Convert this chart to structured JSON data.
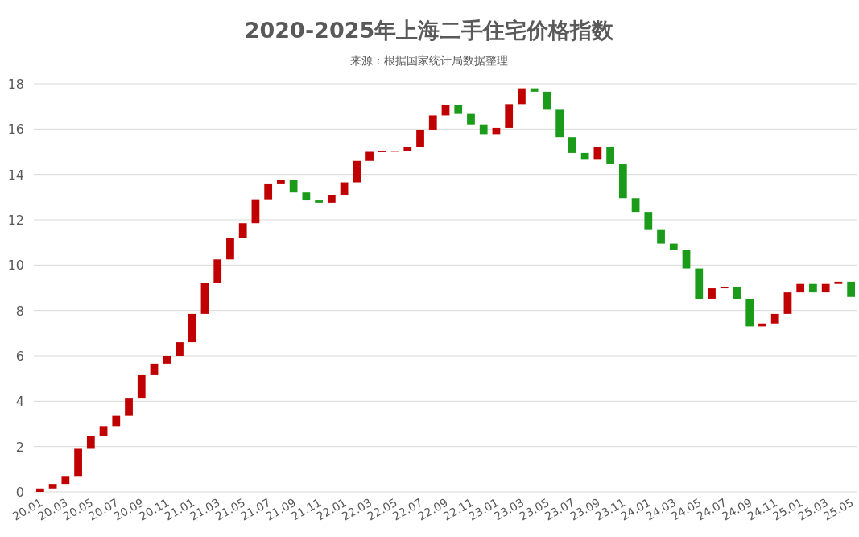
{
  "chart_data": {
    "type": "bar",
    "title": "2020-2025年上海二手住宅价格指数",
    "annotations": [
      "来源：根据国家统计局数据整理"
    ],
    "categories": [
      "20.01",
      null,
      "20.03",
      null,
      "20.05",
      null,
      "20.07",
      null,
      "20.09",
      null,
      "20.11",
      null,
      "21.01",
      null,
      "21.03",
      null,
      "21.05",
      null,
      "21.07",
      null,
      "21.09",
      null,
      "21.11",
      null,
      "22.01",
      null,
      "22.03",
      null,
      "22.05",
      null,
      "22.07",
      null,
      "22.09",
      null,
      "22.11",
      null,
      "23.01",
      null,
      "23.03",
      null,
      "23.05",
      null,
      "23.07",
      null,
      "23.09",
      null,
      "23.11",
      null,
      "24.01",
      null,
      "24.03",
      null,
      "24.05",
      null,
      "24.07",
      null,
      "24.09",
      null,
      "24.11",
      null,
      "25.01",
      null,
      "25.03",
      null,
      "25.05"
    ],
    "base": [
      0,
      0.15,
      0.35,
      0.7,
      1.9,
      2.45,
      2.9,
      3.35,
      4.15,
      5.15,
      5.65,
      6.0,
      6.6,
      7.85,
      9.2,
      10.25,
      11.2,
      11.85,
      12.9,
      13.6,
      13.75,
      13.2,
      12.85,
      12.75,
      13.1,
      13.65,
      14.6,
      15.0,
      15.02,
      15.04,
      15.2,
      15.95,
      16.6,
      17.05,
      16.7,
      16.2,
      15.75,
      16.05,
      17.1,
      17.8,
      17.65,
      16.85,
      15.65,
      14.95,
      14.65,
      15.2,
      14.45,
      12.95,
      12.35,
      11.55,
      10.95,
      10.65,
      9.85,
      8.5,
      8.98,
      9.05,
      8.5,
      7.3,
      7.43,
      7.85,
      8.8,
      9.17,
      8.8,
      9.17,
      9.27
    ],
    "values": [
      0.15,
      0.2,
      0.35,
      1.2,
      0.55,
      0.45,
      0.45,
      0.8,
      1.0,
      0.5,
      0.35,
      0.6,
      1.25,
      1.35,
      1.05,
      0.95,
      0.65,
      1.05,
      0.7,
      0.15,
      -0.55,
      -0.35,
      -0.1,
      0.35,
      0.55,
      0.95,
      0.4,
      0.02,
      0.02,
      0.16,
      0.75,
      0.65,
      0.45,
      -0.35,
      -0.5,
      -0.45,
      0.3,
      1.05,
      0.7,
      -0.15,
      -0.8,
      -1.2,
      -0.7,
      -0.3,
      0.55,
      -0.75,
      -1.5,
      -0.6,
      -0.8,
      -0.6,
      -0.3,
      -0.8,
      -1.35,
      0.48,
      0.07,
      -0.55,
      -1.2,
      0.13,
      0.42,
      0.95,
      0.37,
      -0.37,
      0.37,
      0.1,
      -0.67
    ],
    "colors": [
      "#c00000",
      "#c00000",
      "#c00000",
      "#c00000",
      "#c00000",
      "#c00000",
      "#c00000",
      "#c00000",
      "#c00000",
      "#c00000",
      "#c00000",
      "#c00000",
      "#c00000",
      "#c00000",
      "#c00000",
      "#c00000",
      "#c00000",
      "#c00000",
      "#c00000",
      "#c00000",
      "#1a9c1a",
      "#1a9c1a",
      "#1a9c1a",
      "#c00000",
      "#c00000",
      "#c00000",
      "#c00000",
      "#c00000",
      "#c00000",
      "#c00000",
      "#c00000",
      "#c00000",
      "#c00000",
      "#1a9c1a",
      "#1a9c1a",
      "#1a9c1a",
      "#c00000",
      "#c00000",
      "#c00000",
      "#1a9c1a",
      "#1a9c1a",
      "#1a9c1a",
      "#1a9c1a",
      "#1a9c1a",
      "#c00000",
      "#1a9c1a",
      "#1a9c1a",
      "#1a9c1a",
      "#1a9c1a",
      "#1a9c1a",
      "#1a9c1a",
      "#1a9c1a",
      "#1a9c1a",
      "#c00000",
      "#c00000",
      "#1a9c1a",
      "#1a9c1a",
      "#c00000",
      "#c00000",
      "#c00000",
      "#c00000",
      "#1a9c1a",
      "#c00000",
      "#c00000",
      "#1a9c1a"
    ],
    "ylim": [
      0,
      18
    ],
    "yticks": [
      0,
      2,
      4,
      6,
      8,
      10,
      12,
      14,
      16,
      18
    ],
    "grid": "y"
  }
}
